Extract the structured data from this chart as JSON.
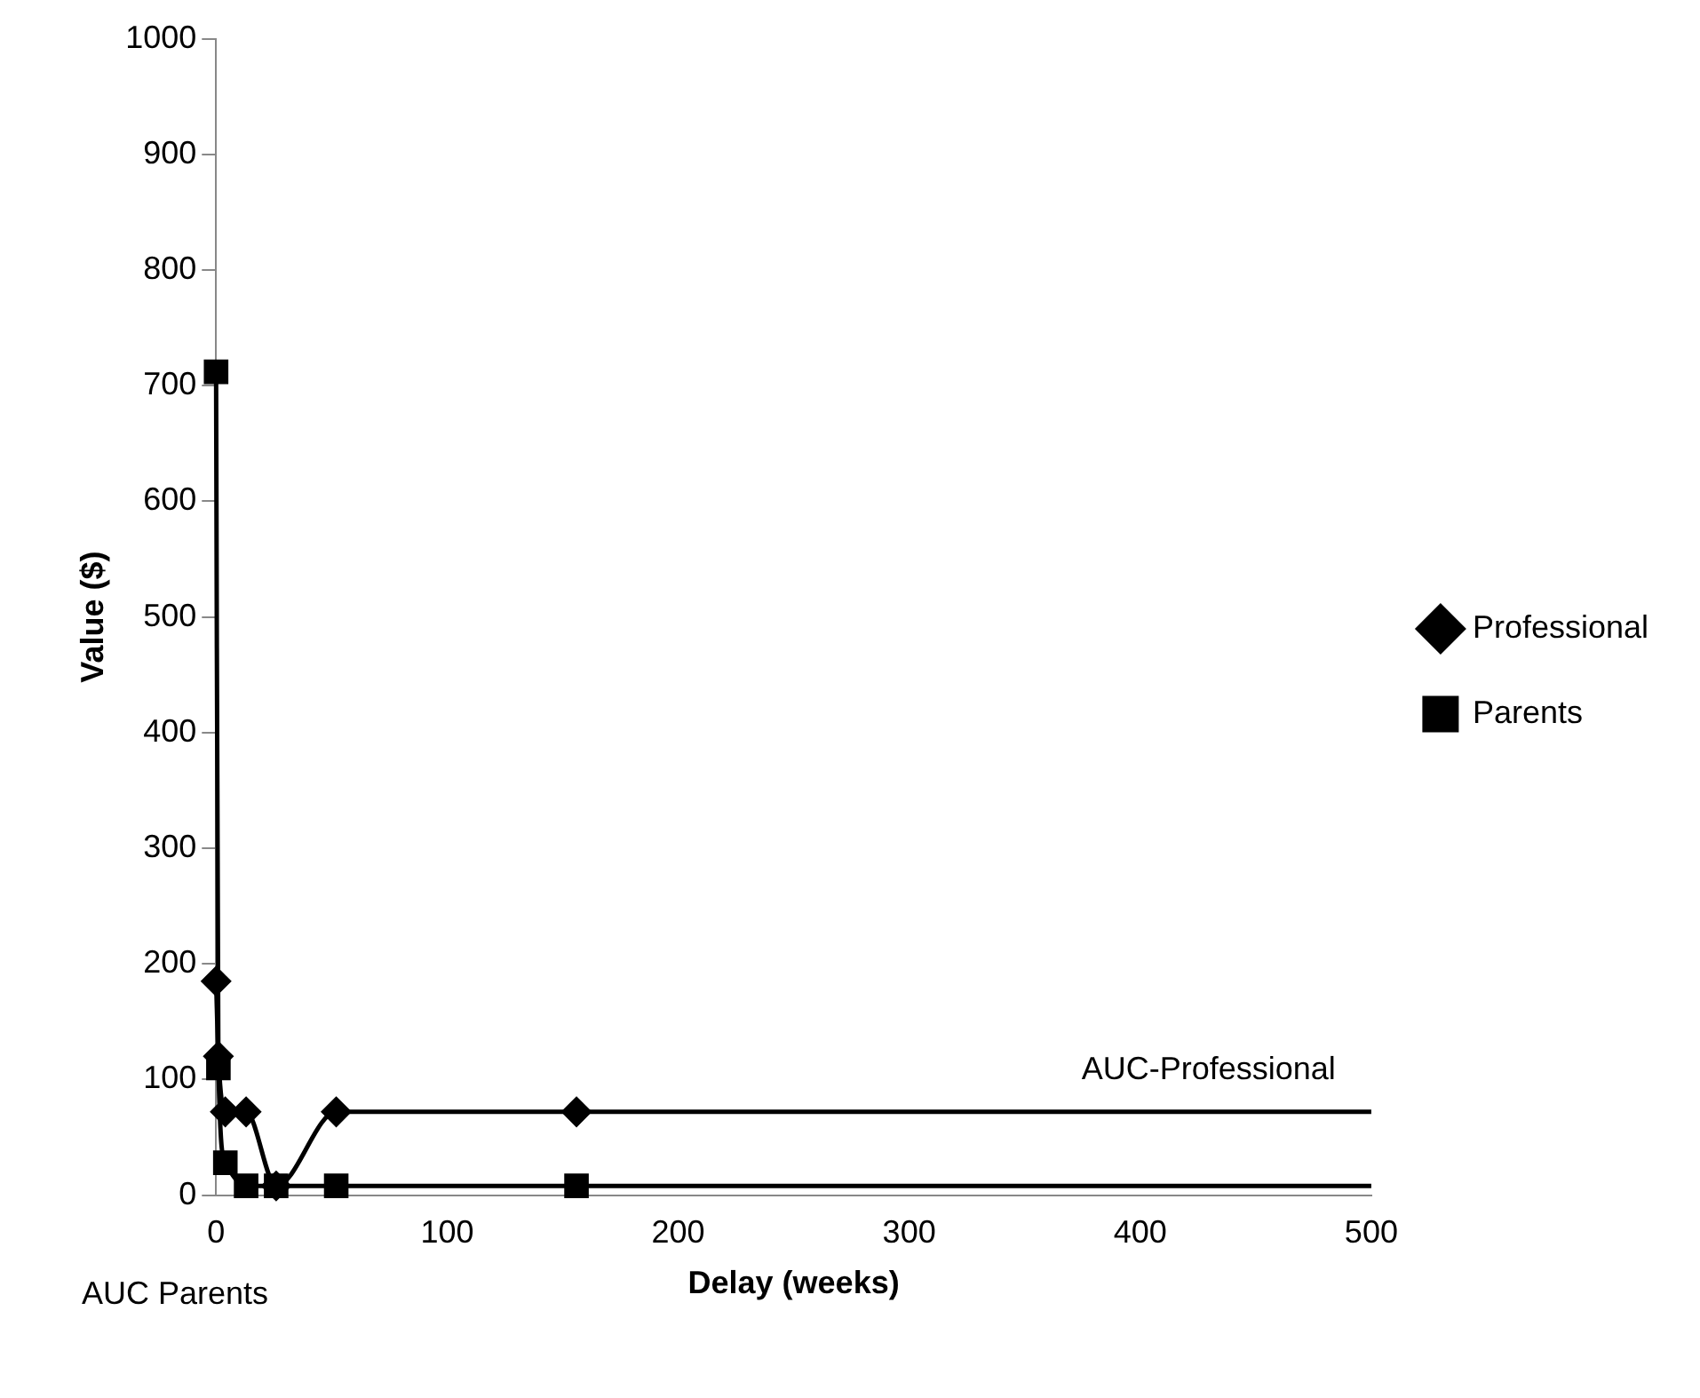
{
  "chart_data": {
    "type": "line",
    "xlabel": "Delay (weeks)",
    "ylabel": "Value ($)",
    "xlim": [
      0,
      500
    ],
    "xticks": [
      0,
      100,
      200,
      300,
      400,
      500
    ],
    "ylim": [
      0,
      1000
    ],
    "yticks": [
      0,
      100,
      200,
      300,
      400,
      500,
      600,
      700,
      800,
      900,
      1000
    ],
    "grid": false,
    "legend": "right",
    "line_style": "solid",
    "series": [
      {
        "name": "Professional",
        "color": "#000000",
        "marker": "diamond",
        "x": [
          0,
          1,
          4,
          13,
          26,
          52,
          156,
          500
        ],
        "values": [
          185,
          120,
          72,
          72,
          8,
          72,
          72,
          72
        ]
      },
      {
        "name": "Parents",
        "color": "#000000",
        "marker": "square",
        "x": [
          0,
          1,
          4,
          13,
          26,
          52,
          156,
          500
        ],
        "values": [
          712,
          110,
          28,
          8,
          8,
          8,
          8,
          8
        ]
      }
    ],
    "annotations": [
      "AUC-Professional",
      "AUC Parents"
    ]
  }
}
